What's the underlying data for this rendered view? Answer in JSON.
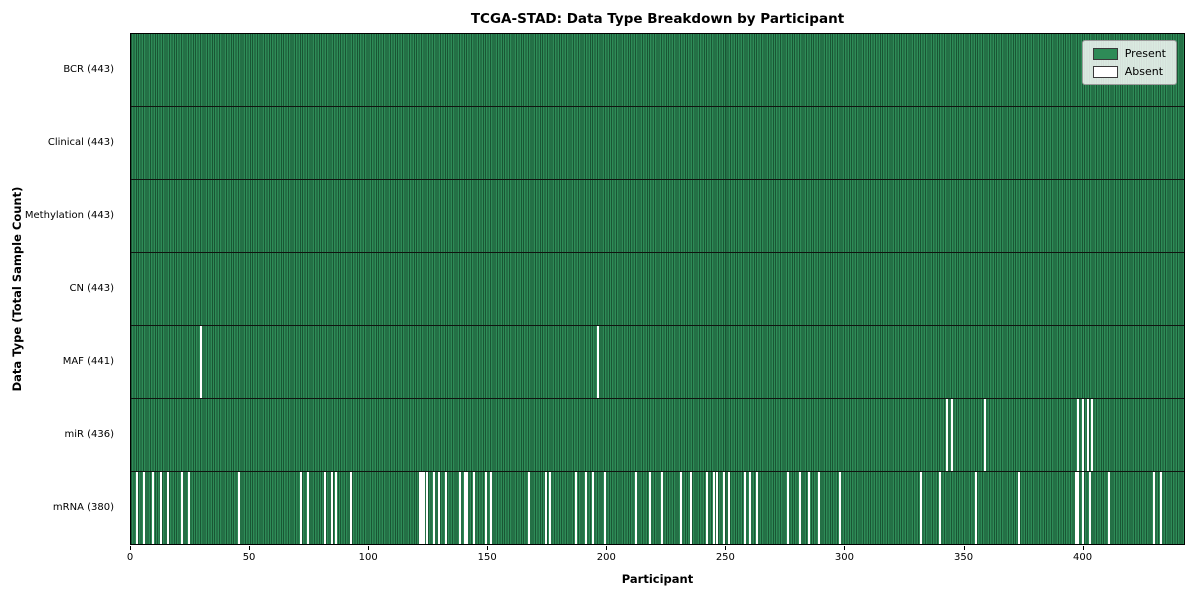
{
  "title": "TCGA-STAD: Data Type Breakdown by Participant",
  "xlabel": "Participant",
  "ylabel": "Data Type (Total Sample Count)",
  "legend": {
    "present_label": "Present",
    "absent_label": "Absent"
  },
  "colors": {
    "present": "#2e8b57",
    "absent": "#ffffff",
    "row_divider": "#101510",
    "plot_border": "#000000"
  },
  "chart_data": {
    "type": "heatmap",
    "title": "TCGA-STAD: Data Type Breakdown by Participant",
    "xlabel": "Participant",
    "ylabel": "Data Type (Total Sample Count)",
    "legend_position": "upper right",
    "n_participants": 443,
    "x_range": [
      0,
      443
    ],
    "x_ticks": [
      0,
      50,
      100,
      150,
      200,
      250,
      300,
      350,
      400
    ],
    "rows": [
      {
        "name": "BCR",
        "label": "BCR (443)",
        "total": 443,
        "absent": []
      },
      {
        "name": "Clinical",
        "label": "Clinical (443)",
        "total": 443,
        "absent": []
      },
      {
        "name": "Methylation",
        "label": "Methylation (443)",
        "total": 443,
        "absent": []
      },
      {
        "name": "CN",
        "label": "CN (443)",
        "total": 443,
        "absent": []
      },
      {
        "name": "MAF",
        "label": "MAF (441)",
        "total": 441,
        "absent": [
          29,
          196
        ]
      },
      {
        "name": "miR",
        "label": "miR (436)",
        "total": 436,
        "absent": [
          343,
          345,
          359,
          398,
          400,
          402,
          404
        ]
      },
      {
        "name": "mRNA",
        "label": "mRNA (380)",
        "total": 380,
        "absent": [
          2,
          5,
          9,
          12,
          15,
          21,
          24,
          45,
          71,
          74,
          81,
          84,
          86,
          92,
          121,
          122,
          123,
          124,
          127,
          129,
          132,
          138,
          140,
          141,
          144,
          149,
          151,
          167,
          174,
          176,
          187,
          191,
          194,
          199,
          212,
          218,
          223,
          231,
          235,
          242,
          245,
          246,
          249,
          251,
          258,
          260,
          263,
          276,
          281,
          285,
          289,
          298,
          332,
          340,
          355,
          373,
          397,
          398,
          400,
          403,
          411,
          430,
          433
        ]
      }
    ]
  }
}
